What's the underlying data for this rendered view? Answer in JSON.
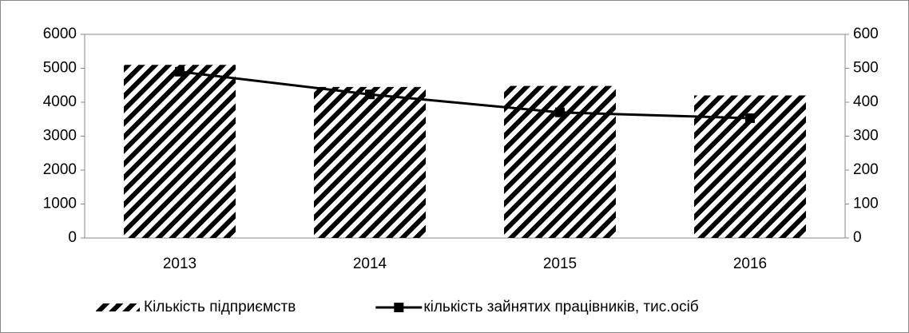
{
  "chart_data": {
    "type": "bar",
    "categories": [
      "2013",
      "2014",
      "2015",
      "2016"
    ],
    "series": [
      {
        "name": "Кількість підприємств",
        "color": "#000000",
        "type": "bar",
        "values": [
          5100,
          4450,
          4480,
          4200
        ]
      },
      {
        "name": "кількість зайнятих працівників, тис.осіб",
        "color": "#000000",
        "type": "line",
        "axis": "y2",
        "values": [
          490,
          423,
          370,
          353
        ]
      }
    ],
    "ylim": [
      0,
      6000
    ],
    "yticks": [
      0,
      1000,
      2000,
      3000,
      4000,
      5000,
      6000
    ],
    "y2lim": [
      0,
      600
    ],
    "y2ticks": [
      0,
      100,
      200,
      300,
      400,
      500,
      600
    ],
    "grid": false,
    "legend": "bottom"
  }
}
